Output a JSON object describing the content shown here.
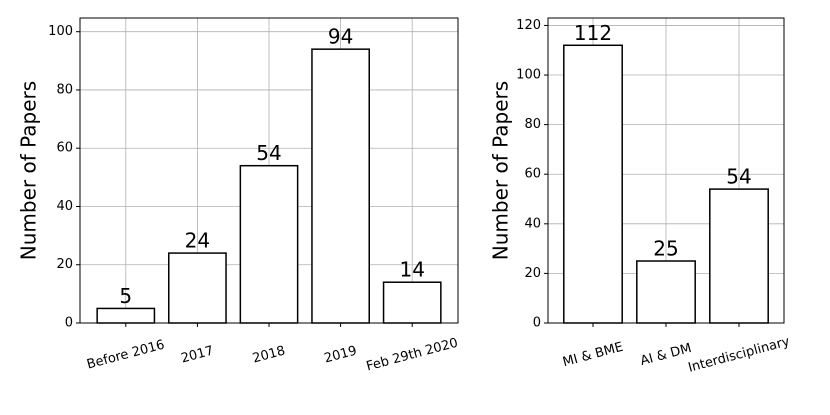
{
  "chart_data": [
    {
      "type": "bar",
      "y_label": "Number of Papers",
      "categories": [
        "Before 2016",
        "2017",
        "2018",
        "2019",
        "Feb 29th 2020"
      ],
      "values": [
        5,
        24,
        54,
        94,
        14
      ],
      "color": "#ffffff",
      "edgecolor": "#000000",
      "ylim": [
        0,
        104.7
      ],
      "yticks": [
        0,
        20,
        40,
        60,
        80,
        100
      ],
      "grid": true
    },
    {
      "type": "bar",
      "y_label": "Number of Papers",
      "categories": [
        "MI & BME",
        "AI & DM",
        "Interdisciplinary"
      ],
      "values": [
        112,
        25,
        54
      ],
      "color": "#ffffff",
      "edgecolor": "#000000",
      "ylim": [
        0,
        123
      ],
      "yticks": [
        0,
        20,
        40,
        60,
        80,
        100,
        120
      ],
      "grid": true
    }
  ]
}
